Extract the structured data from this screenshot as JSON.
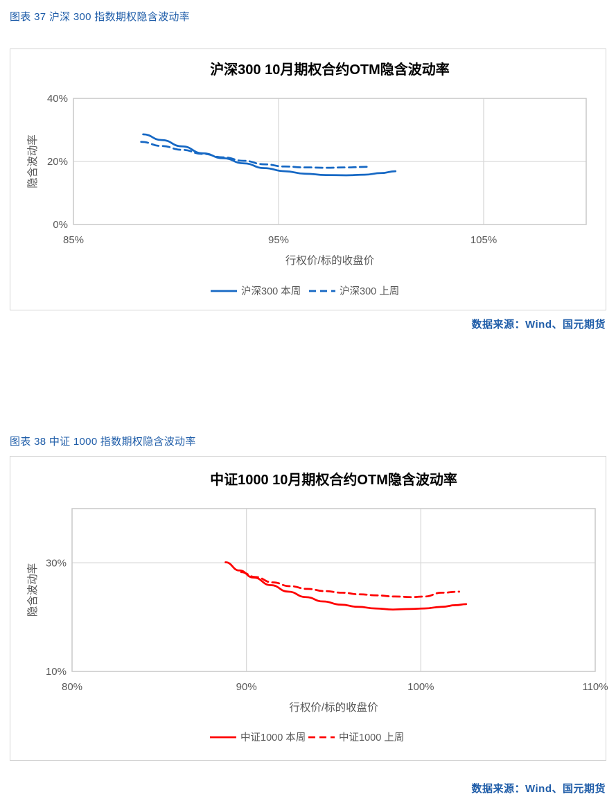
{
  "figures": [
    {
      "label": "图表 37  沪深 300 指数期权隐含波动率",
      "source": "数据来源：Wind、国元期货"
    },
    {
      "label": "图表 38  中证 1000 指数期权隐含波动率",
      "source": "数据来源：Wind、国元期货"
    }
  ],
  "colors": {
    "accent_text": "#1E5CA8",
    "line_blue": "#1668C4",
    "line_red": "#FE0000",
    "grid": "#D9D9D9",
    "plot_border": "#C9C9C9",
    "tick_text": "#595959",
    "title_text": "#000000"
  },
  "chart_data": [
    {
      "type": "line",
      "title": "沪深300  10月期权合约OTM隐含波动率",
      "xlabel": "行权价/标的收盘价",
      "ylabel": "隐含波动率",
      "x_range": [
        85,
        110
      ],
      "y_range": [
        0,
        40
      ],
      "x_ticks": [
        {
          "v": 85,
          "label": "85%"
        },
        {
          "v": 95,
          "label": "95%"
        },
        {
          "v": 105,
          "label": "105%"
        }
      ],
      "y_ticks": [
        {
          "v": 0,
          "label": "0%"
        },
        {
          "v": 20,
          "label": "20%"
        },
        {
          "v": 40,
          "label": "40%"
        }
      ],
      "x_gridlines": [
        95,
        105
      ],
      "y_gridlines": [
        20
      ],
      "grid": true,
      "legend_position": "bottom-center",
      "series": [
        {
          "name": "沪深300 本周",
          "color": "#1668C4",
          "dash": null,
          "points": [
            [
              88.4,
              28.6
            ],
            [
              89.3,
              26.8
            ],
            [
              90.3,
              24.8
            ],
            [
              91.3,
              22.6
            ],
            [
              92.3,
              21.0
            ],
            [
              93.3,
              19.4
            ],
            [
              94.3,
              17.9
            ],
            [
              95.3,
              16.9
            ],
            [
              96.3,
              16.1
            ],
            [
              97.3,
              15.7
            ],
            [
              98.3,
              15.6
            ],
            [
              99.2,
              15.8
            ],
            [
              100.0,
              16.3
            ],
            [
              100.7,
              16.9
            ]
          ]
        },
        {
          "name": "沪深300 上周",
          "color": "#1668C4",
          "dash": "10,6",
          "points": [
            [
              88.3,
              26.2
            ],
            [
              89.3,
              24.9
            ],
            [
              90.3,
              23.7
            ],
            [
              91.3,
              22.4
            ],
            [
              92.3,
              21.3
            ],
            [
              93.3,
              20.2
            ],
            [
              94.3,
              19.1
            ],
            [
              95.3,
              18.4
            ],
            [
              96.3,
              18.1
            ],
            [
              97.3,
              18.0
            ],
            [
              98.3,
              18.1
            ],
            [
              99.4,
              18.3
            ]
          ]
        }
      ]
    },
    {
      "type": "line",
      "title": "中证1000  10月期权合约OTM隐含波动率",
      "xlabel": "行权价/标的收盘价",
      "ylabel": "隐含波动率",
      "x_range": [
        80,
        110
      ],
      "y_range": [
        10,
        40
      ],
      "x_ticks": [
        {
          "v": 80,
          "label": "80%"
        },
        {
          "v": 90,
          "label": "90%"
        },
        {
          "v": 100,
          "label": "100%"
        },
        {
          "v": 110,
          "label": "110%"
        }
      ],
      "y_ticks": [
        {
          "v": 10,
          "label": "10%"
        },
        {
          "v": 30,
          "label": "30%"
        }
      ],
      "x_gridlines": [
        90,
        100
      ],
      "y_gridlines": [
        30
      ],
      "grid": true,
      "legend_position": "bottom-center",
      "series": [
        {
          "name": "中证1000 本周",
          "color": "#FE0000",
          "dash": null,
          "points": [
            [
              88.8,
              30.1
            ],
            [
              89.6,
              28.6
            ],
            [
              90.4,
              27.3
            ],
            [
              91.4,
              25.9
            ],
            [
              92.4,
              24.7
            ],
            [
              93.4,
              23.7
            ],
            [
              94.4,
              22.9
            ],
            [
              95.4,
              22.3
            ],
            [
              96.4,
              21.9
            ],
            [
              97.4,
              21.6
            ],
            [
              98.4,
              21.4
            ],
            [
              99.4,
              21.5
            ],
            [
              100.2,
              21.6
            ],
            [
              101.2,
              21.9
            ],
            [
              102.0,
              22.2
            ],
            [
              102.6,
              22.4
            ]
          ]
        },
        {
          "name": "中证1000 上周",
          "color": "#FE0000",
          "dash": "10,6",
          "points": [
            [
              89.7,
              28.3
            ],
            [
              90.5,
              27.4
            ],
            [
              91.5,
              26.4
            ],
            [
              92.5,
              25.7
            ],
            [
              93.5,
              25.2
            ],
            [
              94.5,
              24.8
            ],
            [
              95.5,
              24.5
            ],
            [
              96.5,
              24.2
            ],
            [
              97.5,
              24.0
            ],
            [
              98.5,
              23.8
            ],
            [
              99.5,
              23.7
            ],
            [
              100.2,
              23.8
            ],
            [
              101.2,
              24.5
            ],
            [
              102.2,
              24.7
            ]
          ]
        }
      ]
    }
  ]
}
